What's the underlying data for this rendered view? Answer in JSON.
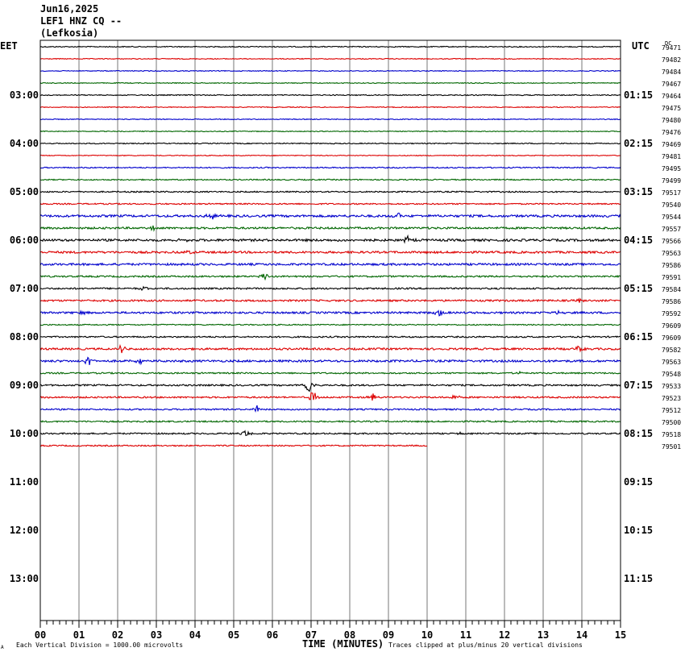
{
  "header": {
    "date": "Jun16,2025",
    "station": "LEF1 HNZ CQ --",
    "location": "(Lefkosia)",
    "left_zone": "EET",
    "right_zone": "UTC",
    "dc_label": "DC"
  },
  "footer": {
    "xlabel": "TIME (MINUTES)",
    "scale_note": "Each Vertical Division = 1000.00 microvolts",
    "clip_note": "Traces clipped at plus/minus 20 vertical divisions",
    "corner_mark": "A"
  },
  "chart_data": {
    "type": "line",
    "title": "Jun16,2025 LEF1 HNZ CQ -- (Lefkosia)",
    "xlabel": "TIME (MINUTES)",
    "ylabel": "",
    "xlim": [
      0,
      15
    ],
    "x_ticks": [
      "00",
      "01",
      "02",
      "03",
      "04",
      "05",
      "06",
      "07",
      "08",
      "09",
      "10",
      "11",
      "12",
      "13",
      "14",
      "15"
    ],
    "left_time_labels": [
      "03:00",
      "04:00",
      "05:00",
      "06:00",
      "07:00",
      "08:00",
      "09:00",
      "10:00",
      "11:00",
      "12:00",
      "13:00"
    ],
    "right_time_labels": [
      "01:15",
      "02:15",
      "03:15",
      "04:15",
      "05:15",
      "06:15",
      "07:15",
      "08:15",
      "09:15",
      "10:15",
      "11:15"
    ],
    "trace_colors": [
      "#000000",
      "#dd0000",
      "#0000cc",
      "#006600"
    ],
    "grid": "vertical lines every minute",
    "traces": [
      {
        "dc": "79471",
        "noise": 0.6,
        "end_minute": 15,
        "events": []
      },
      {
        "dc": "79482",
        "noise": 0.5,
        "end_minute": 15,
        "events": []
      },
      {
        "dc": "79484",
        "noise": 0.5,
        "end_minute": 15,
        "events": []
      },
      {
        "dc": "79467",
        "noise": 0.5,
        "end_minute": 15,
        "events": []
      },
      {
        "dc": "79464",
        "noise": 0.6,
        "end_minute": 15,
        "events": []
      },
      {
        "dc": "79475",
        "noise": 0.5,
        "end_minute": 15,
        "events": []
      },
      {
        "dc": "79480",
        "noise": 0.5,
        "end_minute": 15,
        "events": []
      },
      {
        "dc": "79476",
        "noise": 0.5,
        "end_minute": 15,
        "events": []
      },
      {
        "dc": "79469",
        "noise": 0.6,
        "end_minute": 15,
        "events": []
      },
      {
        "dc": "79481",
        "noise": 0.5,
        "end_minute": 15,
        "events": []
      },
      {
        "dc": "79495",
        "noise": 0.7,
        "end_minute": 15,
        "events": []
      },
      {
        "dc": "79499",
        "noise": 0.7,
        "end_minute": 15,
        "events": []
      },
      {
        "dc": "79517",
        "noise": 0.8,
        "end_minute": 15,
        "events": []
      },
      {
        "dc": "79540",
        "noise": 0.8,
        "end_minute": 15,
        "events": []
      },
      {
        "dc": "79544",
        "noise": 1.4,
        "end_minute": 15,
        "events": [
          {
            "minute": 4.45,
            "amp": 5
          },
          {
            "minute": 9.25,
            "amp": 4
          }
        ]
      },
      {
        "dc": "79557",
        "noise": 1.2,
        "end_minute": 15,
        "events": [
          {
            "minute": 2.9,
            "amp": 3
          }
        ]
      },
      {
        "dc": "79566",
        "noise": 1.4,
        "end_minute": 15,
        "events": [
          {
            "minute": 9.5,
            "amp": 5
          },
          {
            "minute": 3.7,
            "amp": 2
          }
        ]
      },
      {
        "dc": "79563",
        "noise": 1.3,
        "end_minute": 15,
        "events": [
          {
            "minute": 3.8,
            "amp": 3
          }
        ]
      },
      {
        "dc": "79586",
        "noise": 1.3,
        "end_minute": 15,
        "events": []
      },
      {
        "dc": "79591",
        "noise": 1.0,
        "end_minute": 15,
        "events": [
          {
            "minute": 5.8,
            "amp": 4
          }
        ]
      },
      {
        "dc": "79584",
        "noise": 1.0,
        "end_minute": 15,
        "events": [
          {
            "minute": 2.7,
            "amp": 3
          }
        ]
      },
      {
        "dc": "79586",
        "noise": 1.1,
        "end_minute": 15,
        "events": [
          {
            "minute": 13.9,
            "amp": 3
          }
        ]
      },
      {
        "dc": "79592",
        "noise": 1.2,
        "end_minute": 15,
        "events": [
          {
            "minute": 10.3,
            "amp": 5
          },
          {
            "minute": 13.4,
            "amp": 4
          },
          {
            "minute": 1.1,
            "amp": 3
          }
        ]
      },
      {
        "dc": "79609",
        "noise": 0.7,
        "end_minute": 15,
        "events": []
      },
      {
        "dc": "79609",
        "noise": 0.9,
        "end_minute": 15,
        "events": []
      },
      {
        "dc": "79582",
        "noise": 1.2,
        "end_minute": 15,
        "events": [
          {
            "minute": 2.1,
            "amp": 6
          },
          {
            "minute": 13.9,
            "amp": 5
          }
        ]
      },
      {
        "dc": "79563",
        "noise": 1.3,
        "end_minute": 15,
        "events": [
          {
            "minute": 1.25,
            "amp": 9
          },
          {
            "minute": 2.6,
            "amp": 3
          }
        ]
      },
      {
        "dc": "79548",
        "noise": 0.9,
        "end_minute": 15,
        "events": [
          {
            "minute": 12.4,
            "amp": 2
          }
        ]
      },
      {
        "dc": "79533",
        "noise": 1.0,
        "end_minute": 15,
        "events": [
          {
            "minute": 6.95,
            "amp": 12
          }
        ]
      },
      {
        "dc": "79523",
        "noise": 1.0,
        "end_minute": 15,
        "events": [
          {
            "minute": 7.05,
            "amp": 9
          },
          {
            "minute": 8.6,
            "amp": 5
          },
          {
            "minute": 10.7,
            "amp": 4
          }
        ]
      },
      {
        "dc": "79512",
        "noise": 0.9,
        "end_minute": 15,
        "events": [
          {
            "minute": 5.6,
            "amp": 6
          }
        ]
      },
      {
        "dc": "79500",
        "noise": 0.9,
        "end_minute": 15,
        "events": []
      },
      {
        "dc": "79518",
        "noise": 0.9,
        "end_minute": 15,
        "events": [
          {
            "minute": 5.3,
            "amp": 5
          },
          {
            "minute": 10.9,
            "amp": 2
          }
        ]
      },
      {
        "dc": "79501",
        "noise": 0.8,
        "end_minute": 10,
        "events": []
      }
    ]
  }
}
